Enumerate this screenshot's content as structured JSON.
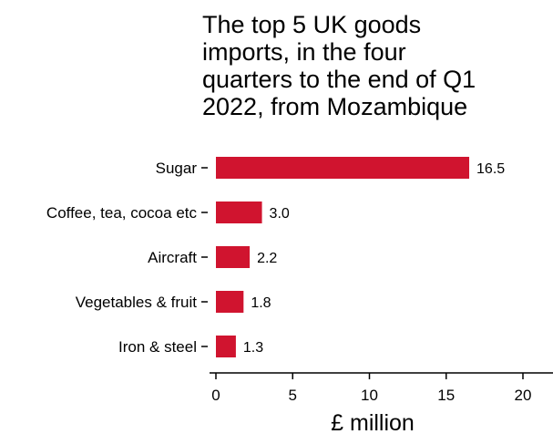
{
  "chart_data": {
    "type": "bar",
    "orientation": "horizontal",
    "title_lines": [
      "The top 5 UK goods",
      "imports, in the four",
      "quarters to the end of Q1",
      "2022, from Mozambique"
    ],
    "categories": [
      "Sugar",
      "Coffee, tea, cocoa etc",
      "Aircraft",
      "Vegetables & fruit",
      "Iron & steel"
    ],
    "values": [
      16.5,
      3.0,
      2.2,
      1.8,
      1.3
    ],
    "value_labels": [
      "16.5",
      "3.0",
      "2.2",
      "1.8",
      "1.3"
    ],
    "xlabel": "£ million",
    "xlim": [
      0,
      22
    ],
    "xticks": [
      0,
      5,
      10,
      15,
      20
    ],
    "xtick_labels": [
      "0",
      "5",
      "10",
      "15",
      "20"
    ],
    "bar_color": "#d0142f",
    "grid": false,
    "legend": "none"
  }
}
